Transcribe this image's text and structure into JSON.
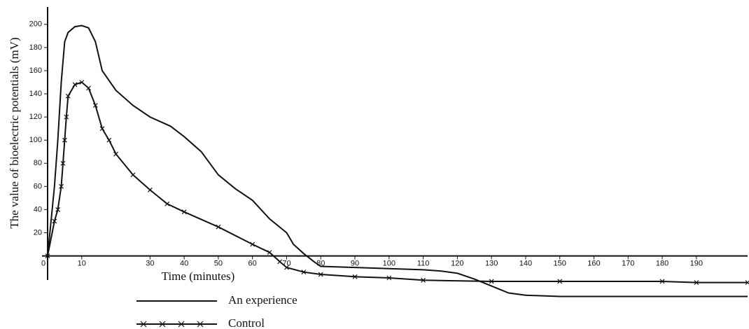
{
  "chart_data": {
    "type": "line",
    "y_label": "The value of bioelectric potentials (mV)",
    "x_label": "Time (minutes)",
    "xlim": [
      0,
      205
    ],
    "ylim": [
      -45,
      215
    ],
    "xticks": [
      0,
      10,
      30,
      40,
      50,
      60,
      70,
      80,
      90,
      100,
      110,
      120,
      130,
      140,
      150,
      160,
      170,
      180,
      190
    ],
    "yticks": [
      20,
      40,
      60,
      80,
      100,
      120,
      140,
      160,
      180,
      200
    ],
    "series": [
      {
        "name": "An experience",
        "color": "#111111",
        "marker": "none",
        "x": [
          0,
          2,
          3,
          4,
          5,
          6,
          8,
          10,
          12,
          14,
          16,
          20,
          25,
          30,
          36,
          40,
          45,
          50,
          55,
          60,
          65,
          70,
          72,
          75,
          78,
          80,
          90,
          100,
          110,
          115,
          120,
          125,
          130,
          135,
          140,
          150,
          160,
          190,
          205
        ],
        "values": [
          0,
          60,
          100,
          150,
          185,
          193,
          198,
          199,
          197,
          185,
          160,
          143,
          130,
          120,
          112,
          103,
          90,
          70,
          58,
          48,
          32,
          20,
          10,
          2,
          -5,
          -9,
          -10,
          -11,
          -12,
          -13,
          -15,
          -20,
          -26,
          -32,
          -34,
          -35,
          -35,
          -35,
          -35
        ]
      },
      {
        "name": "Control",
        "color": "#111111",
        "marker": "x",
        "x": [
          0,
          2,
          3,
          4,
          4.5,
          5,
          5.5,
          6,
          8,
          10,
          12,
          14,
          16,
          18,
          20,
          25,
          30,
          35,
          40,
          50,
          60,
          65,
          68,
          70,
          75,
          80,
          90,
          100,
          110,
          130,
          150,
          180,
          190,
          205
        ],
        "values": [
          0,
          30,
          40,
          60,
          80,
          100,
          120,
          138,
          148,
          150,
          145,
          130,
          110,
          100,
          88,
          70,
          57,
          45,
          38,
          25,
          10,
          3,
          -5,
          -10,
          -14,
          -16,
          -18,
          -19,
          -21,
          -22,
          -22,
          -22,
          -23,
          -23
        ]
      }
    ]
  }
}
